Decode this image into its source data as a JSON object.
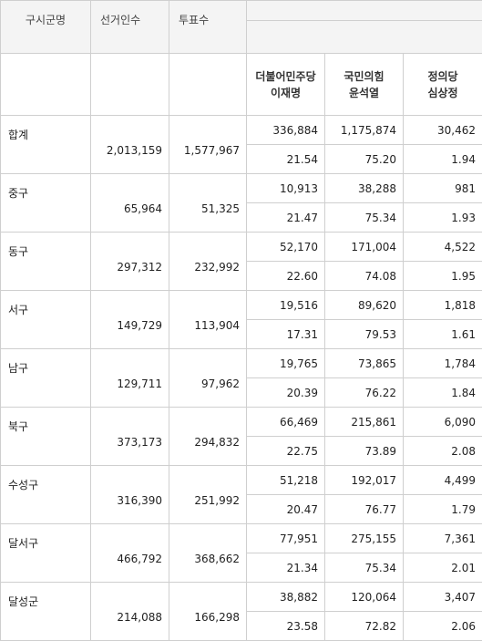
{
  "headers": {
    "district": "구시군명",
    "voters": "선거인수",
    "votes": "투표수"
  },
  "candidates": [
    {
      "party": "더불어민주당",
      "name": "이재명"
    },
    {
      "party": "국민의힘",
      "name": "윤석열"
    },
    {
      "party": "정의당",
      "name": "심상정"
    }
  ],
  "rows": [
    {
      "name": "합계",
      "voters": "2,013,159",
      "votes": "1,577,967",
      "counts": [
        "336,884",
        "1,175,874",
        "30,462"
      ],
      "pcts": [
        "21.54",
        "75.20",
        "1.94"
      ]
    },
    {
      "name": "중구",
      "voters": "65,964",
      "votes": "51,325",
      "counts": [
        "10,913",
        "38,288",
        "981"
      ],
      "pcts": [
        "21.47",
        "75.34",
        "1.93"
      ]
    },
    {
      "name": "동구",
      "voters": "297,312",
      "votes": "232,992",
      "counts": [
        "52,170",
        "171,004",
        "4,522"
      ],
      "pcts": [
        "22.60",
        "74.08",
        "1.95"
      ]
    },
    {
      "name": "서구",
      "voters": "149,729",
      "votes": "113,904",
      "counts": [
        "19,516",
        "89,620",
        "1,818"
      ],
      "pcts": [
        "17.31",
        "79.53",
        "1.61"
      ]
    },
    {
      "name": "남구",
      "voters": "129,711",
      "votes": "97,962",
      "counts": [
        "19,765",
        "73,865",
        "1,784"
      ],
      "pcts": [
        "20.39",
        "76.22",
        "1.84"
      ]
    },
    {
      "name": "북구",
      "voters": "373,173",
      "votes": "294,832",
      "counts": [
        "66,469",
        "215,861",
        "6,090"
      ],
      "pcts": [
        "22.75",
        "73.89",
        "2.08"
      ]
    },
    {
      "name": "수성구",
      "voters": "316,390",
      "votes": "251,992",
      "counts": [
        "51,218",
        "192,017",
        "4,499"
      ],
      "pcts": [
        "20.47",
        "76.77",
        "1.79"
      ]
    },
    {
      "name": "달서구",
      "voters": "466,792",
      "votes": "368,662",
      "counts": [
        "77,951",
        "275,155",
        "7,361"
      ],
      "pcts": [
        "21.34",
        "75.34",
        "2.01"
      ]
    },
    {
      "name": "달성군",
      "voters": "214,088",
      "votes": "166,298",
      "counts": [
        "38,882",
        "120,064",
        "3,407"
      ],
      "pcts": [
        "23.58",
        "72.82",
        "2.06"
      ]
    }
  ]
}
